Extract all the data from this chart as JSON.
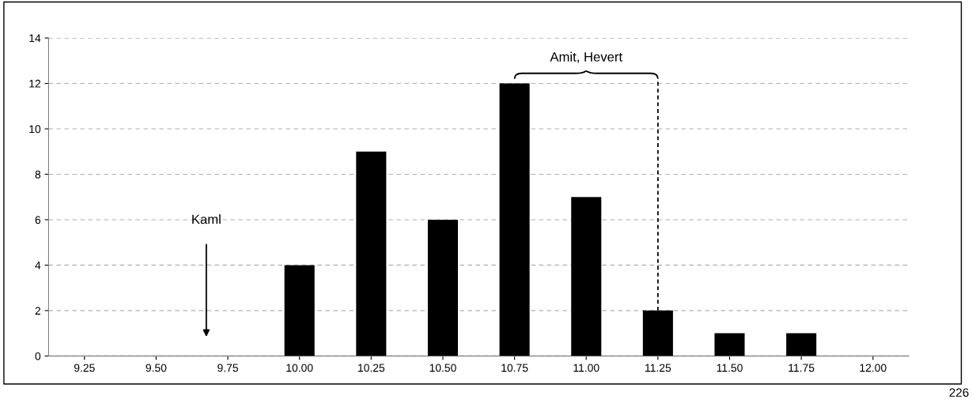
{
  "chart_data": {
    "type": "bar",
    "categories": [
      "9.25",
      "9.50",
      "9.75",
      "10.00",
      "10.25",
      "10.50",
      "10.75",
      "11.00",
      "11.25",
      "11.50",
      "11.75",
      "12.00"
    ],
    "values": [
      0,
      0,
      0,
      4,
      9,
      6,
      12,
      7,
      2,
      1,
      1,
      0
    ],
    "color": "#000000",
    "ylim": [
      0,
      14
    ],
    "yticks": [
      0,
      2,
      4,
      6,
      8,
      10,
      12,
      14
    ],
    "grid": "y",
    "annotations": [
      "Kaml",
      "Amit, Hevert",
      "226"
    ]
  }
}
